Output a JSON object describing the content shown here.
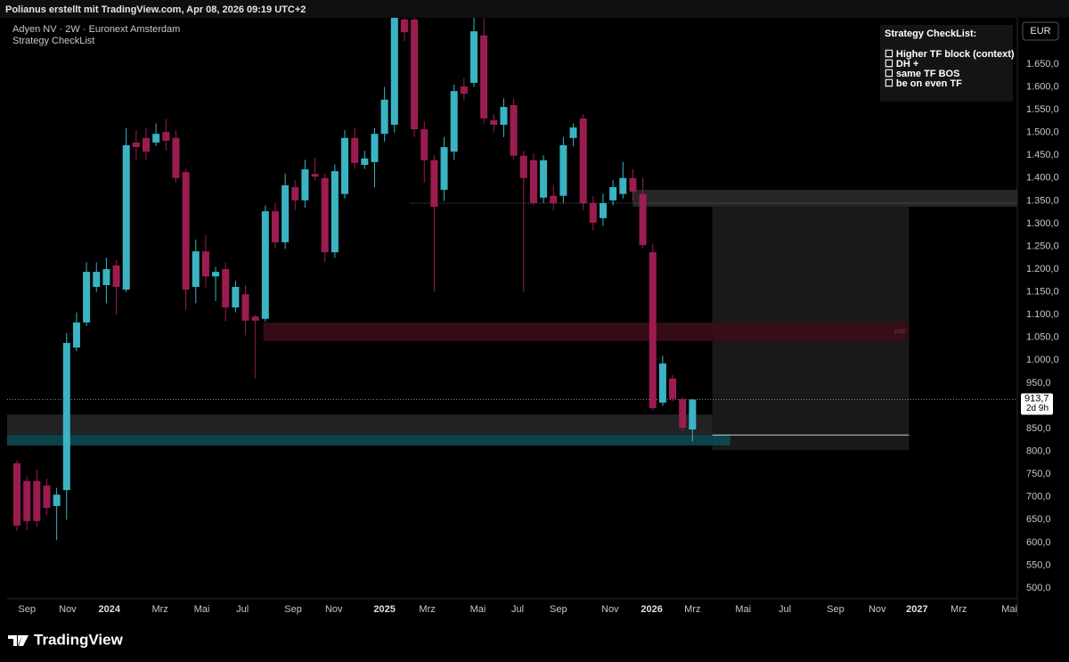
{
  "chart_data": {
    "type": "candlestick",
    "header": "Polianus erstellt mit TradingView.com, Apr 08, 2026 09:19 UTC+2",
    "title": "Adyen NV · 2W · Euronext Amsterdam",
    "indicator": "Strategy CheckList",
    "currency": "EUR",
    "checklist": {
      "title": "Strategy CheckList:",
      "items": [
        "☐ Higher TF block (context)",
        "☐ DH +",
        "☐ same TF BOS",
        "☐ be on even TF"
      ]
    },
    "price_label": "913,7",
    "countdown": "2d 9h",
    "brand": "TradingView",
    "up_color": "#3bb3c3",
    "down_color": "#9c1c52",
    "x": [
      0,
      1,
      2,
      3,
      4,
      5,
      6,
      7,
      8,
      9,
      10,
      11,
      12,
      13,
      14,
      15,
      16,
      17,
      18,
      19,
      20,
      21,
      22,
      23,
      24,
      25,
      26,
      27,
      28,
      29,
      30,
      31,
      32,
      33,
      34,
      35,
      36,
      37,
      38,
      39,
      40,
      41,
      42,
      43,
      44,
      45,
      46,
      47,
      48,
      49,
      50,
      51,
      52,
      53,
      54,
      55,
      56,
      57,
      58,
      59,
      60,
      61,
      62,
      63,
      64,
      65,
      66,
      67,
      68
    ],
    "open": [
      774,
      735,
      735,
      725,
      680,
      715,
      1028,
      1083,
      1161,
      1165,
      1208,
      1155,
      1478,
      1488,
      1478,
      1501,
      1488,
      1413,
      1161,
      1239,
      1184,
      1200,
      1116,
      1145,
      1096,
      1091,
      1327,
      1259,
      1380,
      1351,
      1409,
      1400,
      1237,
      1365,
      1488,
      1429,
      1435,
      1497,
      1517,
      1748,
      1748,
      1507,
      1439,
      1374,
      1458,
      1601,
      1609,
      1713,
      1527,
      1517,
      1560,
      1449,
      1439,
      1357,
      1361,
      1361,
      1488,
      1531,
      1345,
      1312,
      1351,
      1365,
      1400,
      1365,
      1237,
      907,
      960,
      915,
      848
    ],
    "high": [
      780,
      745,
      760,
      740,
      720,
      1060,
      1105,
      1215,
      1215,
      1225,
      1220,
      1510,
      1505,
      1510,
      1520,
      1530,
      1505,
      1420,
      1265,
      1275,
      1205,
      1215,
      1175,
      1165,
      1100,
      1340,
      1345,
      1410,
      1395,
      1440,
      1445,
      1410,
      1430,
      1505,
      1510,
      1460,
      1510,
      1600,
      1770,
      1770,
      1760,
      1525,
      1450,
      1490,
      1605,
      1620,
      1752,
      1760,
      1540,
      1575,
      1575,
      1460,
      1455,
      1450,
      1385,
      1490,
      1520,
      1540,
      1360,
      1365,
      1395,
      1435,
      1420,
      1400,
      1255,
      1010,
      968,
      918,
      915
    ],
    "low": [
      625,
      627,
      635,
      660,
      605,
      650,
      1020,
      1075,
      1150,
      1125,
      1100,
      1150,
      1440,
      1440,
      1470,
      1460,
      1390,
      1110,
      1125,
      1160,
      1130,
      1085,
      1105,
      1055,
      960,
      1085,
      1245,
      1245,
      1330,
      1335,
      1395,
      1215,
      1225,
      1355,
      1420,
      1420,
      1380,
      1480,
      1500,
      1700,
      1490,
      1390,
      1150,
      1350,
      1440,
      1570,
      1600,
      1520,
      1500,
      1490,
      1440,
      1150,
      1340,
      1345,
      1330,
      1345,
      1470,
      1330,
      1285,
      1295,
      1340,
      1355,
      1350,
      1245,
      890,
      900,
      910,
      845,
      822
    ],
    "close": [
      637,
      647,
      647,
      676,
      705,
      1038,
      1083,
      1194,
      1194,
      1200,
      1161,
      1472,
      1468,
      1458,
      1497,
      1482,
      1400,
      1155,
      1239,
      1184,
      1194,
      1116,
      1161,
      1087,
      1087,
      1327,
      1259,
      1384,
      1351,
      1419,
      1403,
      1237,
      1415,
      1488,
      1433,
      1443,
      1497,
      1572,
      1755,
      1720,
      1507,
      1439,
      1337,
      1468,
      1591,
      1585,
      1722,
      1531,
      1517,
      1556,
      1449,
      1400,
      1345,
      1439,
      1345,
      1472,
      1511,
      1345,
      1302,
      1345,
      1380,
      1400,
      1370,
      1253,
      895,
      993,
      915,
      852,
      913.7
    ],
    "xlim": [
      -0.99,
      100.7
    ],
    "ylim": [
      476.5,
      1751.7
    ],
    "xticks": [
      {
        "value": 1.0,
        "label": "Sep"
      },
      {
        "value": 5.1,
        "label": "Nov"
      },
      {
        "value": 9.3,
        "label": "2024"
      },
      {
        "value": 14.4,
        "label": "Mrz"
      },
      {
        "value": 18.6,
        "label": "Mai"
      },
      {
        "value": 22.7,
        "label": "Jul"
      },
      {
        "value": 27.8,
        "label": "Sep"
      },
      {
        "value": 31.9,
        "label": "Nov"
      },
      {
        "value": 37.0,
        "label": "2025"
      },
      {
        "value": 41.3,
        "label": "Mrz"
      },
      {
        "value": 46.4,
        "label": "Mai"
      },
      {
        "value": 50.4,
        "label": "Jul"
      },
      {
        "value": 54.5,
        "label": "Sep"
      },
      {
        "value": 59.7,
        "label": "Nov"
      },
      {
        "value": 63.9,
        "label": "2026"
      },
      {
        "value": 68.0,
        "label": "Mrz"
      },
      {
        "value": 73.1,
        "label": "Mai"
      },
      {
        "value": 77.3,
        "label": "Jul"
      },
      {
        "value": 82.4,
        "label": "Sep"
      },
      {
        "value": 86.6,
        "label": "Nov"
      },
      {
        "value": 90.6,
        "label": "2027"
      },
      {
        "value": 94.8,
        "label": "Mrz"
      },
      {
        "value": 99.9,
        "label": "Mai"
      }
    ],
    "yticks": [
      {
        "value": 500,
        "label": "500,0"
      },
      {
        "value": 550,
        "label": "550,0"
      },
      {
        "value": 600,
        "label": "600,0"
      },
      {
        "value": 650,
        "label": "650,0"
      },
      {
        "value": 700,
        "label": "700,0"
      },
      {
        "value": 750,
        "label": "750,0"
      },
      {
        "value": 800,
        "label": "800,0"
      },
      {
        "value": 850,
        "label": "850,0"
      },
      {
        "value": 900,
        "label": "900,0"
      },
      {
        "value": 950,
        "label": "950,0"
      },
      {
        "value": 1000,
        "label": "1.000,0"
      },
      {
        "value": 1050,
        "label": "1.050,0"
      },
      {
        "value": 1100,
        "label": "1.100,0"
      },
      {
        "value": 1150,
        "label": "1.150,0"
      },
      {
        "value": 1200,
        "label": "1.200,0"
      },
      {
        "value": 1250,
        "label": "1.250,0"
      },
      {
        "value": 1300,
        "label": "1.300,0"
      },
      {
        "value": 1350,
        "label": "1.350,0"
      },
      {
        "value": 1400,
        "label": "1.400,0"
      },
      {
        "value": 1450,
        "label": "1.450,0"
      },
      {
        "value": 1500,
        "label": "1.500,0"
      },
      {
        "value": 1550,
        "label": "1.550,0"
      },
      {
        "value": 1600,
        "label": "1.600,0"
      },
      {
        "value": 1650,
        "label": "1.650,0"
      }
    ],
    "zones": [
      {
        "x": [
          62.0,
          100.7
        ],
        "price": [
          1374,
          1337
        ],
        "color": "#2a2a2a"
      },
      {
        "x": [
          70.0,
          89.8
        ],
        "price": [
          1337,
          803
        ],
        "color": "#1c1c1c"
      },
      {
        "x": [
          24.8,
          89.8
        ],
        "price": [
          1083,
          1042
        ],
        "color": "#3a0d16",
        "label": "pIW"
      },
      {
        "x": [
          -0.99,
          70.0
        ],
        "price": [
          881,
          836
        ],
        "color": "#262626"
      },
      {
        "x": [
          -0.99,
          71.8
        ],
        "price": [
          836,
          813
        ],
        "color": "#0d4a52"
      }
    ],
    "levels": [
      {
        "x": [
          39.6,
          100.7
        ],
        "price": 1345,
        "color": "#777777",
        "dash": "1 2"
      },
      {
        "x": [
          70.0,
          89.8
        ],
        "price": 836,
        "color": "#cccccc"
      }
    ]
  }
}
